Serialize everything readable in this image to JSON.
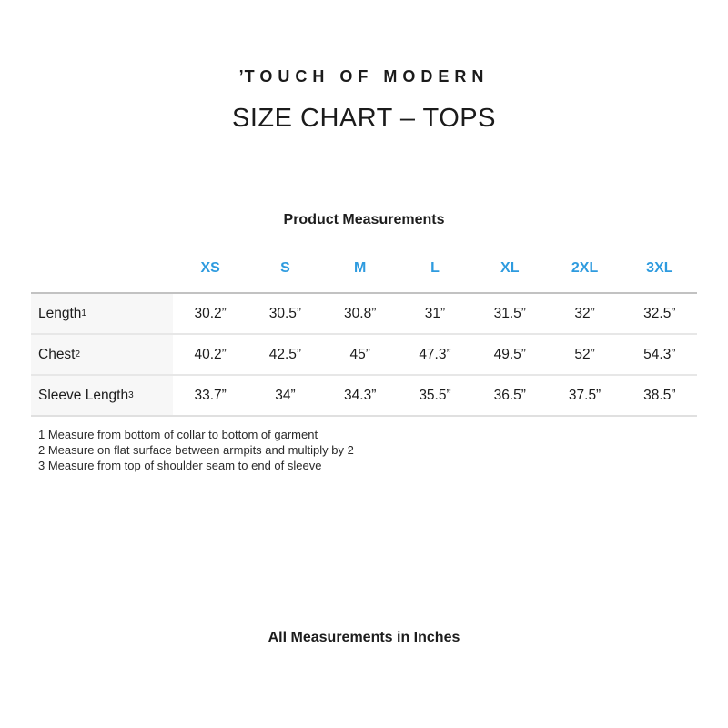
{
  "page": {
    "logo_mark": "’",
    "logo_text": "TOUCH OF MODERN",
    "title": "SIZE CHART – TOPS",
    "footer_note": "All Measurements in Inches"
  },
  "colors": {
    "accent_blue": "#2e9bdf",
    "label_column_bg": "#f7f7f7",
    "table_top_border": "#c2c2c2",
    "row_divider": "#e7e7e7"
  },
  "chart_data": {
    "type": "table",
    "title": "Product Measurements",
    "columns": [
      "XS",
      "S",
      "M",
      "L",
      "XL",
      "2XL",
      "3XL"
    ],
    "rows": [
      {
        "label": "Length",
        "sup": "1",
        "values": [
          "30.2”",
          "30.5”",
          "30.8”",
          "31”",
          "31.5”",
          "32”",
          "32.5”"
        ]
      },
      {
        "label": "Chest",
        "sup": "2",
        "values": [
          "40.2”",
          "42.5”",
          "45”",
          "47.3”",
          "49.5”",
          "52”",
          "54.3”"
        ]
      },
      {
        "label": "Sleeve Length",
        "sup": "3",
        "values": [
          "33.7”",
          "34”",
          "34.3”",
          "35.5”",
          "36.5”",
          "37.5”",
          "38.5”"
        ]
      }
    ],
    "footnotes": [
      "1 Measure from bottom of collar to bottom of garment",
      "2 Measure on flat surface between armpits and multiply by 2",
      "3 Measure from top of shoulder seam to end of sleeve"
    ]
  }
}
